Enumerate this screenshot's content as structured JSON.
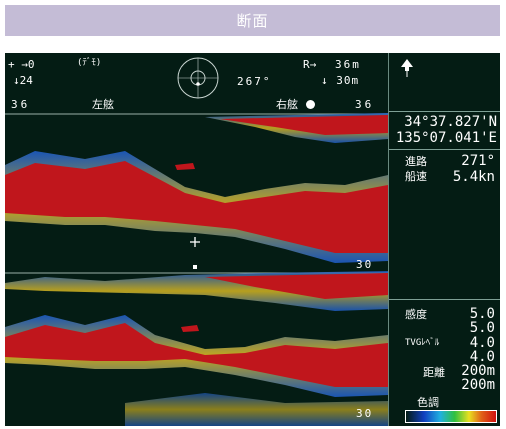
{
  "title": "断面",
  "topbar": {
    "left_line1": "+ →0",
    "mode_label": "(ﾃﾞﾓ)",
    "left_line2": "↓24",
    "bearing": "267°",
    "range_label": "R→",
    "range_value": "36m",
    "depth_value": "↓ 30m"
  },
  "scale_row": {
    "left_range": "36",
    "port_label": "左舷",
    "starboard_label": "右舷",
    "right_range": "36"
  },
  "position": {
    "lat": "34°37.827'N",
    "lon": "135°07.041'E"
  },
  "nav": {
    "course_label": "進路",
    "course_value": "271°",
    "speed_label": "船速",
    "speed_value": "5.4kn"
  },
  "settings": {
    "gain_label": "感度",
    "gain_a": "5.0",
    "gain_b": "5.0",
    "tvg_label": "TVGﾚﾍﾞﾙ",
    "tvg_a": "4.0",
    "tvg_b": "4.0",
    "dist_label": "距離",
    "dist_a": "200m",
    "dist_b": "200m",
    "color_label": "色調"
  },
  "depth_marks": {
    "upper": "30",
    "lower": "30"
  },
  "colors": {
    "background": "#041c14",
    "echo": "#c0161c",
    "title_bar": "#c4bcd6"
  },
  "icons": {
    "north": "north-arrow-icon",
    "compass": "compass-icon",
    "ship_marker": "ship-marker-icon",
    "cursor": "cursor-cross-icon"
  }
}
